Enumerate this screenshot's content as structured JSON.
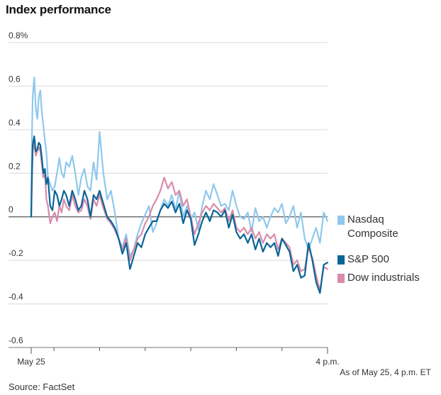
{
  "header": {
    "title": "Index performance"
  },
  "footer": {
    "as_of": "As of May 25, 4 p.m. ET",
    "source": "Source: FactSet"
  },
  "legend": [
    {
      "name": "Nasdaq\nComposite",
      "color": "#8fc8ec"
    },
    {
      "name": "S&P 500",
      "color": "#0a6496"
    },
    {
      "name": "Dow industrials",
      "color": "#d98bab"
    }
  ],
  "chart_data": {
    "type": "line",
    "title": "Index performance",
    "xlabel": "",
    "ylabel": "",
    "ylim": [
      -0.6,
      0.8
    ],
    "yticks": [
      0.8,
      0.6,
      0.4,
      0.2,
      0,
      -0.2,
      -0.4,
      -0.6
    ],
    "ytick_labels": [
      "0.8%",
      "0.6",
      "0.4",
      "0.2",
      "0",
      "-0.2",
      "-0.4",
      "-0.6"
    ],
    "xlim": [
      0,
      390
    ],
    "xticks": [
      0,
      30,
      90,
      150,
      210,
      270,
      330,
      390
    ],
    "xtick_labels": [
      "May 25",
      "",
      "",
      "",
      "",
      "",
      "",
      "4 p.m."
    ],
    "grid": true,
    "legend_position": "right",
    "series": [
      {
        "name": "Nasdaq Composite",
        "color": "#8fc8ec",
        "x": [
          0,
          1,
          2,
          4,
          6,
          8,
          10,
          12,
          14,
          16,
          18,
          20,
          22,
          25,
          28,
          31,
          34,
          37,
          40,
          43,
          46,
          50,
          54,
          58,
          62,
          66,
          70,
          74,
          78,
          82,
          86,
          90,
          95,
          100,
          105,
          110,
          115,
          120,
          125,
          130,
          135,
          140,
          145,
          150,
          155,
          160,
          165,
          170,
          175,
          180,
          185,
          190,
          195,
          200,
          205,
          210,
          215,
          220,
          225,
          230,
          235,
          240,
          245,
          250,
          255,
          260,
          265,
          270,
          275,
          280,
          285,
          290,
          295,
          300,
          305,
          310,
          315,
          320,
          325,
          330,
          335,
          340,
          345,
          350,
          355,
          360,
          365,
          370,
          375,
          380,
          385,
          390
        ],
        "y": [
          0,
          0.38,
          0.55,
          0.64,
          0.5,
          0.45,
          0.55,
          0.58,
          0.48,
          0.42,
          0.35,
          0.3,
          0.18,
          0.15,
          0.12,
          0.14,
          0.2,
          0.27,
          0.2,
          0.18,
          0.25,
          0.23,
          0.28,
          0.2,
          0.1,
          0.18,
          0.22,
          0.14,
          0.12,
          0.25,
          0.17,
          0.39,
          0.2,
          0.08,
          0.12,
          0.02,
          -0.1,
          -0.14,
          -0.08,
          -0.18,
          -0.15,
          -0.08,
          -0.03,
          0.01,
          0.05,
          -0.07,
          -0.03,
          0.03,
          0.08,
          0.05,
          0.1,
          0.03,
          0.12,
          0.0,
          0.05,
          -0.01,
          0.02,
          -0.06,
          0.05,
          0.12,
          0.08,
          0.15,
          0.1,
          0.05,
          0.06,
          0.03,
          0.12,
          0.05,
          0.0,
          -0.01,
          0.02,
          -0.07,
          0.04,
          -0.02,
          0.0,
          -0.05,
          0.0,
          0.04,
          0.02,
          0.06,
          -0.03,
          0.0,
          0.05,
          -0.05,
          0.02,
          -0.1,
          -0.15,
          -0.1,
          -0.05,
          -0.12,
          0.02,
          -0.02
        ]
      },
      {
        "name": "S&P 500",
        "color": "#0a6496",
        "x": [
          0,
          1,
          2,
          4,
          6,
          8,
          10,
          12,
          14,
          16,
          18,
          20,
          22,
          25,
          28,
          31,
          34,
          37,
          40,
          43,
          46,
          50,
          54,
          58,
          62,
          66,
          70,
          74,
          78,
          82,
          86,
          90,
          95,
          100,
          105,
          110,
          115,
          120,
          125,
          130,
          135,
          140,
          145,
          150,
          155,
          160,
          165,
          170,
          175,
          180,
          185,
          190,
          195,
          200,
          205,
          210,
          215,
          220,
          225,
          230,
          235,
          240,
          245,
          250,
          255,
          260,
          265,
          270,
          275,
          280,
          285,
          290,
          295,
          300,
          305,
          310,
          315,
          320,
          325,
          330,
          335,
          340,
          345,
          350,
          355,
          360,
          365,
          370,
          375,
          380,
          385,
          390
        ],
        "y": [
          0,
          0.2,
          0.33,
          0.37,
          0.3,
          0.31,
          0.34,
          0.33,
          0.27,
          0.2,
          0.22,
          0.15,
          0.18,
          0.05,
          0.03,
          0.12,
          0.1,
          0.05,
          0.08,
          0.12,
          0.1,
          0.05,
          0.12,
          0.08,
          0.03,
          0.05,
          0.12,
          0.08,
          0.0,
          0.1,
          0.08,
          0.12,
          0.06,
          0.0,
          -0.02,
          -0.05,
          -0.1,
          -0.17,
          -0.12,
          -0.24,
          -0.18,
          -0.12,
          -0.14,
          -0.08,
          -0.05,
          -0.02,
          -0.02,
          0.03,
          0.06,
          0.04,
          0.07,
          0.02,
          0.06,
          -0.03,
          0.03,
          -0.01,
          -0.13,
          -0.08,
          -0.02,
          0.02,
          -0.02,
          0.03,
          0.02,
          0.0,
          0.03,
          -0.05,
          0.01,
          -0.07,
          -0.1,
          -0.08,
          -0.12,
          -0.08,
          -0.15,
          -0.1,
          -0.16,
          -0.12,
          -0.14,
          -0.12,
          -0.18,
          -0.1,
          -0.13,
          -0.16,
          -0.25,
          -0.22,
          -0.28,
          -0.27,
          -0.12,
          -0.2,
          -0.3,
          -0.35,
          -0.22,
          -0.21
        ]
      },
      {
        "name": "Dow industrials",
        "color": "#d98bab",
        "x": [
          0,
          1,
          2,
          4,
          6,
          8,
          10,
          12,
          14,
          16,
          18,
          20,
          22,
          25,
          28,
          31,
          34,
          37,
          40,
          43,
          46,
          50,
          54,
          58,
          62,
          66,
          70,
          74,
          78,
          82,
          86,
          90,
          95,
          100,
          105,
          110,
          115,
          120,
          125,
          130,
          135,
          140,
          145,
          150,
          155,
          160,
          165,
          170,
          175,
          180,
          185,
          190,
          195,
          200,
          205,
          210,
          215,
          220,
          225,
          230,
          235,
          240,
          245,
          250,
          255,
          260,
          265,
          270,
          275,
          280,
          285,
          290,
          295,
          300,
          305,
          310,
          315,
          320,
          325,
          330,
          335,
          340,
          345,
          350,
          355,
          360,
          365,
          370,
          375,
          380,
          385,
          390
        ],
        "y": [
          0,
          0.18,
          0.3,
          0.34,
          0.28,
          0.3,
          0.32,
          0.3,
          0.24,
          0.18,
          0.2,
          0.08,
          0.05,
          -0.03,
          0.0,
          0.02,
          -0.02,
          0.05,
          0.02,
          0.08,
          0.05,
          0.03,
          0.1,
          0.05,
          0.02,
          0.03,
          0.08,
          0.05,
          -0.01,
          0.08,
          0.05,
          0.1,
          0.04,
          -0.01,
          -0.03,
          -0.06,
          -0.1,
          -0.15,
          -0.1,
          -0.2,
          -0.15,
          -0.1,
          -0.08,
          -0.03,
          0.0,
          0.05,
          0.08,
          0.12,
          0.18,
          0.13,
          0.16,
          0.1,
          0.12,
          0.05,
          0.08,
          0.0,
          -0.08,
          -0.03,
          0.02,
          0.05,
          0.03,
          0.06,
          0.04,
          0.02,
          0.04,
          -0.02,
          0.03,
          -0.05,
          -0.07,
          -0.05,
          -0.08,
          -0.05,
          -0.1,
          -0.07,
          -0.12,
          -0.08,
          -0.1,
          -0.08,
          -0.15,
          -0.1,
          -0.12,
          -0.14,
          -0.22,
          -0.2,
          -0.25,
          -0.24,
          -0.14,
          -0.19,
          -0.27,
          -0.34,
          -0.23,
          -0.24
        ]
      }
    ]
  }
}
